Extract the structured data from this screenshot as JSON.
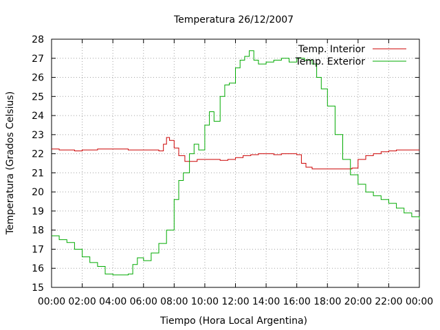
{
  "chart_data": {
    "type": "line",
    "title": "Temperatura 26/12/2007",
    "xlabel": "Tiempo (Hora Local Argentina)",
    "ylabel": "Temperatura (Grados Celsius)",
    "xlim": [
      0,
      24
    ],
    "ylim": [
      15,
      28
    ],
    "grid": true,
    "legend_position": "top-right",
    "x_ticks": [
      "00:00",
      "02:00",
      "04:00",
      "06:00",
      "08:00",
      "10:00",
      "12:00",
      "14:00",
      "16:00",
      "18:00",
      "20:00",
      "22:00",
      "00:00"
    ],
    "y_ticks": [
      "15",
      "16",
      "17",
      "18",
      "19",
      "20",
      "21",
      "22",
      "23",
      "24",
      "25",
      "26",
      "27",
      "28"
    ],
    "series": [
      {
        "name": "Temp. Interior",
        "color": "#cc0000",
        "x": [
          0.0,
          0.5,
          1.0,
          1.5,
          2.0,
          2.5,
          3.0,
          3.5,
          4.0,
          4.5,
          5.0,
          5.5,
          6.0,
          6.5,
          7.0,
          7.3,
          7.5,
          7.7,
          8.0,
          8.3,
          8.7,
          9.0,
          9.5,
          10.0,
          10.5,
          11.0,
          11.5,
          12.0,
          12.5,
          13.0,
          13.5,
          14.0,
          14.5,
          15.0,
          15.5,
          16.0,
          16.3,
          16.6,
          17.0,
          17.5,
          18.0,
          18.5,
          19.0,
          19.3,
          19.6,
          20.0,
          20.5,
          21.0,
          21.5,
          22.0,
          22.5,
          23.0,
          23.5,
          24.0
        ],
        "values": [
          22.25,
          22.2,
          22.2,
          22.15,
          22.2,
          22.2,
          22.25,
          22.25,
          22.25,
          22.25,
          22.2,
          22.2,
          22.2,
          22.2,
          22.15,
          22.5,
          22.85,
          22.7,
          22.3,
          21.9,
          21.6,
          21.6,
          21.7,
          21.7,
          21.7,
          21.65,
          21.7,
          21.8,
          21.9,
          21.95,
          22.0,
          22.0,
          21.95,
          22.0,
          22.0,
          21.95,
          21.5,
          21.3,
          21.2,
          21.2,
          21.2,
          21.2,
          21.2,
          21.2,
          21.25,
          21.7,
          21.9,
          22.0,
          22.1,
          22.15,
          22.2,
          22.2,
          22.2,
          22.2
        ]
      },
      {
        "name": "Temp. Exterior",
        "color": "#00aa00",
        "x": [
          0.0,
          0.5,
          1.0,
          1.5,
          2.0,
          2.5,
          3.0,
          3.5,
          4.0,
          4.5,
          5.0,
          5.3,
          5.6,
          6.0,
          6.5,
          7.0,
          7.5,
          8.0,
          8.3,
          8.6,
          9.0,
          9.3,
          9.6,
          10.0,
          10.3,
          10.6,
          11.0,
          11.3,
          11.6,
          12.0,
          12.3,
          12.6,
          12.9,
          13.2,
          13.5,
          14.0,
          14.5,
          15.0,
          15.5,
          16.0,
          16.5,
          17.0,
          17.3,
          17.6,
          18.0,
          18.5,
          19.0,
          19.5,
          20.0,
          20.5,
          21.0,
          21.5,
          22.0,
          22.5,
          23.0,
          23.5,
          24.0
        ],
        "values": [
          17.7,
          17.5,
          17.35,
          17.0,
          16.6,
          16.3,
          16.1,
          15.7,
          15.65,
          15.65,
          15.7,
          16.2,
          16.55,
          16.4,
          16.8,
          17.3,
          18.0,
          19.6,
          20.6,
          21.0,
          22.0,
          22.5,
          22.2,
          23.5,
          24.2,
          23.7,
          25.0,
          25.6,
          25.7,
          26.5,
          26.9,
          27.1,
          27.4,
          26.9,
          26.7,
          26.8,
          26.9,
          27.0,
          26.8,
          27.0,
          26.9,
          26.7,
          26.0,
          25.4,
          24.5,
          23.0,
          21.7,
          20.9,
          20.4,
          20.0,
          19.8,
          19.6,
          19.4,
          19.15,
          18.9,
          18.7,
          18.55
        ]
      }
    ]
  }
}
